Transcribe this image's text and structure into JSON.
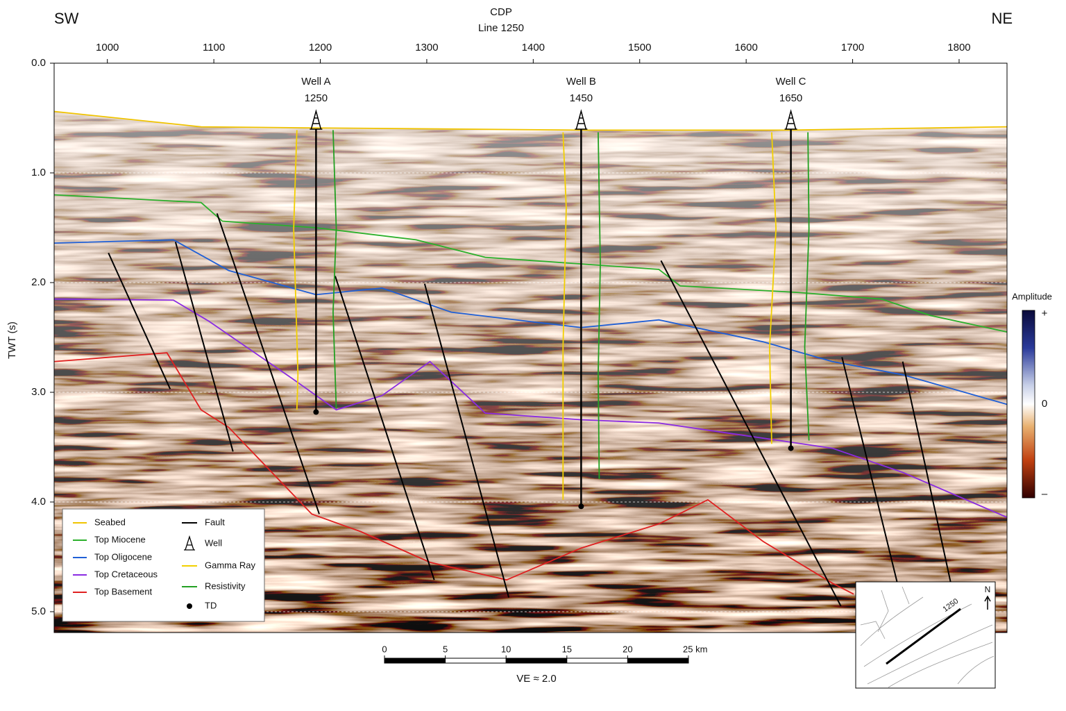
{
  "chart_data": {
    "type": "seismic-section",
    "title": "CDP",
    "subtitle": "Line 1250",
    "left_label": "SW",
    "right_label": "NE",
    "y_label": "TWT (s)",
    "xlim": [
      950,
      1845
    ],
    "ylim": [
      0,
      5.19
    ],
    "xticks": [
      1000,
      1100,
      1200,
      1300,
      1400,
      1500,
      1600,
      1700,
      1800
    ],
    "yticks": [
      {
        "value": 0,
        "label": "0.0"
      },
      {
        "value": 1,
        "label": "1.0"
      },
      {
        "value": 2,
        "label": "2.0"
      },
      {
        "value": 3,
        "label": "3.0"
      },
      {
        "value": 4,
        "label": "4.0"
      },
      {
        "value": 5,
        "label": "5.0"
      }
    ],
    "grid": true,
    "horizons": [
      {
        "name": "Seabed",
        "color": "#f0c400",
        "x": [
          950,
          1088,
          1196,
          1445,
          1642,
          1845
        ],
        "y": [
          0.44,
          0.58,
          0.59,
          0.61,
          0.61,
          0.58
        ]
      },
      {
        "name": "Top Miocene",
        "color": "#2bb02b",
        "x": [
          950,
          1088,
          1108,
          1196,
          1290,
          1355,
          1445,
          1518,
          1538,
          1649,
          1727,
          1773,
          1845
        ],
        "y": [
          1.2,
          1.27,
          1.44,
          1.5,
          1.61,
          1.77,
          1.83,
          1.88,
          2.03,
          2.09,
          2.15,
          2.3,
          2.45
        ]
      },
      {
        "name": "Top Oligocene",
        "color": "#1f5fd6",
        "x": [
          950,
          1062,
          1114,
          1196,
          1258,
          1323,
          1445,
          1518,
          1616,
          1681,
          1747,
          1845
        ],
        "y": [
          1.64,
          1.61,
          1.89,
          2.11,
          2.05,
          2.27,
          2.41,
          2.34,
          2.54,
          2.72,
          2.84,
          3.11
        ]
      },
      {
        "name": "Top Cretaceous",
        "color": "#8a2be2",
        "x": [
          950,
          1062,
          1095,
          1173,
          1215,
          1258,
          1303,
          1355,
          1445,
          1518,
          1681,
          1747,
          1845
        ],
        "y": [
          2.15,
          2.16,
          2.35,
          2.87,
          3.16,
          3.03,
          2.72,
          3.19,
          3.25,
          3.28,
          3.51,
          3.73,
          4.14
        ]
      },
      {
        "name": "Top Basement",
        "color": "#e02020",
        "x": [
          950,
          1056,
          1088,
          1114,
          1192,
          1238,
          1303,
          1375,
          1445,
          1518,
          1564,
          1616,
          1681,
          1701
        ],
        "y": [
          2.72,
          2.64,
          3.16,
          3.32,
          4.11,
          4.27,
          4.55,
          4.71,
          4.42,
          4.2,
          3.98,
          4.36,
          4.74,
          4.84
        ]
      }
    ],
    "faults": {
      "name": "Fault",
      "color": "#000000",
      "segments": [
        {
          "x": [
            1001,
            1059
          ],
          "y": [
            1.73,
            2.97
          ]
        },
        {
          "x": [
            1064,
            1118
          ],
          "y": [
            1.63,
            3.54
          ]
        },
        {
          "x": [
            1103,
            1199
          ],
          "y": [
            1.37,
            4.11
          ]
        },
        {
          "x": [
            1214,
            1307
          ],
          "y": [
            1.94,
            4.71
          ]
        },
        {
          "x": [
            1298,
            1377
          ],
          "y": [
            2.01,
            4.87
          ]
        },
        {
          "x": [
            1520,
            1689
          ],
          "y": [
            1.8,
            4.95
          ]
        },
        {
          "x": [
            1690,
            1742
          ],
          "y": [
            2.68,
            4.74
          ]
        },
        {
          "x": [
            1747,
            1792
          ],
          "y": [
            2.72,
            4.73
          ]
        }
      ]
    },
    "wells": {
      "name": "Well",
      "items": [
        {
          "name": "Well A",
          "label": "1250",
          "x": 1196,
          "td": 3.18,
          "gamma_ray": {
            "x": [
              1178,
              1175,
              1179,
              1178
            ],
            "y": [
              0.61,
              1.51,
              2.84,
              3.16
            ]
          },
          "resistivity": {
            "x": [
              1212,
              1215,
              1212,
              1215
            ],
            "y": [
              0.61,
              1.51,
              2.27,
              3.15
            ]
          }
        },
        {
          "name": "Well B",
          "label": "1450",
          "x": 1445,
          "td": 4.04,
          "gamma_ray": {
            "x": [
              1428,
              1431,
              1428,
              1428
            ],
            "y": [
              0.63,
              1.32,
              2.59,
              3.98
            ]
          },
          "resistivity": {
            "x": [
              1461,
              1463,
              1461,
              1462
            ],
            "y": [
              0.63,
              1.83,
              2.84,
              3.79
            ]
          }
        },
        {
          "name": "Well C",
          "label": "1650",
          "x": 1642,
          "td": 3.51,
          "gamma_ray": {
            "x": [
              1624,
              1628,
              1622,
              1624
            ],
            "y": [
              0.63,
              1.51,
              2.59,
              3.47
            ]
          },
          "resistivity": {
            "x": [
              1658,
              1659,
              1655,
              1659
            ],
            "y": [
              0.63,
              1.51,
              2.59,
              3.44
            ]
          }
        }
      ]
    },
    "gamma_ray": {
      "name": "Gamma Ray",
      "color": "#f2d000"
    },
    "resistivity": {
      "name": "Resistivity",
      "color": "#22a022"
    },
    "td": {
      "name": "TD"
    },
    "colorbar": {
      "title": "Amplitude",
      "labels": [
        "+",
        "0",
        "–"
      ]
    },
    "scale_bar": {
      "ticks": [
        0,
        5,
        10,
        15,
        20,
        {
          "value": 25,
          "label": "25 km"
        }
      ]
    },
    "ve_label": "VE ≈ 2.0",
    "inset": {
      "line_label": "1250",
      "north": "N"
    }
  }
}
